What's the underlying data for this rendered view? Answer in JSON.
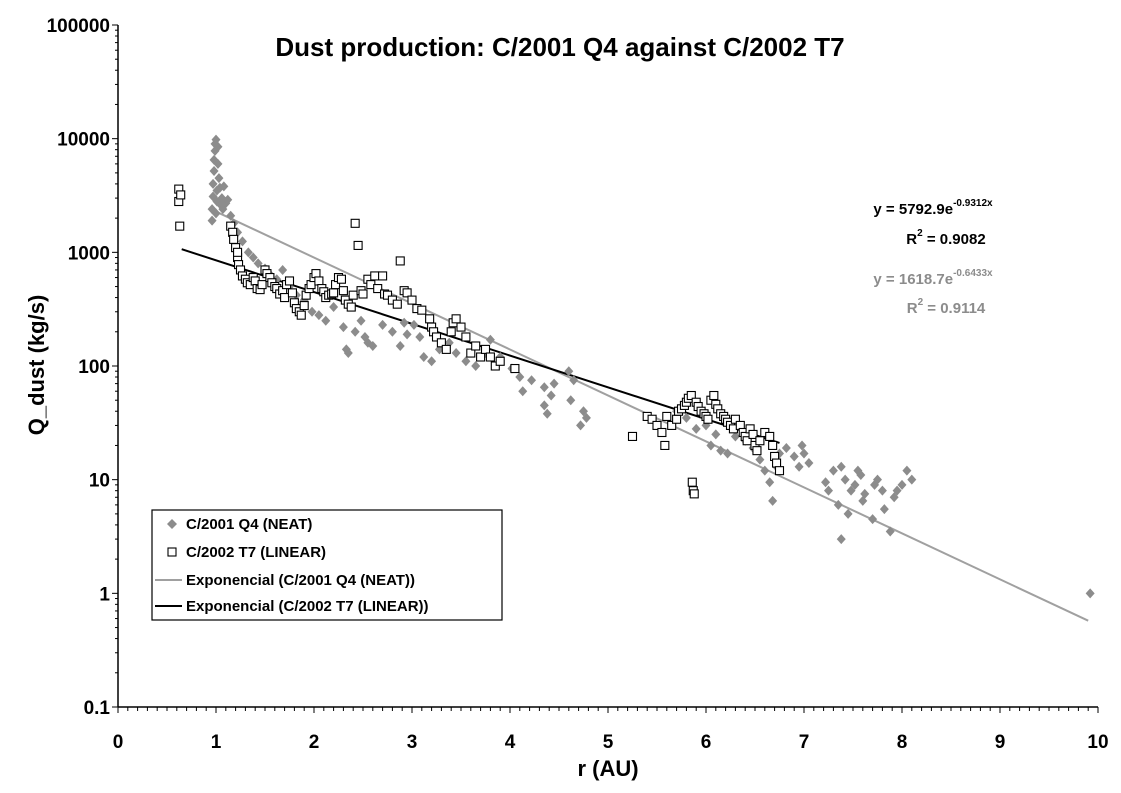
{
  "chart_data": {
    "type": "scatter",
    "title": "Dust production: C/2001 Q4 against C/2002 T7",
    "xlabel": "r (AU)",
    "ylabel": "Q_dust (kg/s)",
    "xlim": [
      0,
      10
    ],
    "ylim": [
      0.1,
      100000
    ],
    "y_scale": "log",
    "grid": false,
    "legend_position": "bottom-left",
    "x_ticks": [
      "0",
      "1",
      "2",
      "3",
      "4",
      "5",
      "6",
      "7",
      "8",
      "9",
      "10"
    ],
    "y_ticks": [
      "0.1",
      "1",
      "10",
      "100",
      "1000",
      "10000",
      "100000"
    ],
    "colors": {
      "neat": "#8c8c8c",
      "linear": "#000000",
      "neat_fit": "#a0a0a0",
      "linear_fit": "#000000"
    },
    "series": [
      {
        "name": "C/2001 Q4 (NEAT)",
        "marker": "diamond",
        "points": [
          [
            0.96,
            1900
          ],
          [
            0.96,
            2400
          ],
          [
            0.97,
            3100
          ],
          [
            0.97,
            4000
          ],
          [
            0.98,
            5200
          ],
          [
            0.98,
            6500
          ],
          [
            0.99,
            7800
          ],
          [
            0.99,
            9000
          ],
          [
            1.0,
            9800
          ],
          [
            1.0,
            2200
          ],
          [
            1.01,
            3500
          ],
          [
            1.01,
            2800
          ],
          [
            1.02,
            8500
          ],
          [
            1.02,
            6000
          ],
          [
            1.03,
            4500
          ],
          [
            1.04,
            3700
          ],
          [
            1.05,
            2600
          ],
          [
            1.06,
            3000
          ],
          [
            1.07,
            2400
          ],
          [
            1.08,
            3800
          ],
          [
            1.1,
            2700
          ],
          [
            1.12,
            2900
          ],
          [
            1.15,
            2100
          ],
          [
            1.18,
            1800
          ],
          [
            1.22,
            1500
          ],
          [
            1.27,
            1250
          ],
          [
            1.33,
            1000
          ],
          [
            1.38,
            900
          ],
          [
            1.43,
            800
          ],
          [
            1.5,
            720
          ],
          [
            1.55,
            640
          ],
          [
            1.62,
            580
          ],
          [
            1.68,
            700
          ],
          [
            1.75,
            500
          ],
          [
            1.82,
            420
          ],
          [
            1.9,
            380
          ],
          [
            1.98,
            300
          ],
          [
            2.05,
            280
          ],
          [
            2.12,
            250
          ],
          [
            2.2,
            330
          ],
          [
            2.3,
            220
          ],
          [
            2.33,
            140
          ],
          [
            2.35,
            130
          ],
          [
            2.42,
            200
          ],
          [
            2.48,
            250
          ],
          [
            2.52,
            180
          ],
          [
            2.55,
            160
          ],
          [
            2.6,
            150
          ],
          [
            2.7,
            230
          ],
          [
            2.8,
            200
          ],
          [
            2.88,
            150
          ],
          [
            2.92,
            240
          ],
          [
            2.95,
            190
          ],
          [
            3.02,
            230
          ],
          [
            3.08,
            180
          ],
          [
            3.12,
            120
          ],
          [
            3.2,
            110
          ],
          [
            3.28,
            140
          ],
          [
            3.38,
            160
          ],
          [
            3.45,
            130
          ],
          [
            3.55,
            110
          ],
          [
            3.65,
            100
          ],
          [
            3.75,
            130
          ],
          [
            3.8,
            170
          ],
          [
            3.9,
            120
          ],
          [
            4.02,
            95
          ],
          [
            4.1,
            80
          ],
          [
            4.13,
            60
          ],
          [
            4.22,
            75
          ],
          [
            4.35,
            65
          ],
          [
            4.35,
            45
          ],
          [
            4.38,
            38
          ],
          [
            4.42,
            55
          ],
          [
            4.45,
            70
          ],
          [
            4.6,
            90
          ],
          [
            4.62,
            50
          ],
          [
            4.65,
            75
          ],
          [
            4.72,
            30
          ],
          [
            4.75,
            40
          ],
          [
            4.78,
            35
          ],
          [
            5.7,
            40
          ],
          [
            5.8,
            35
          ],
          [
            5.9,
            28
          ],
          [
            6.0,
            30
          ],
          [
            6.05,
            20
          ],
          [
            6.1,
            25
          ],
          [
            6.15,
            18
          ],
          [
            6.22,
            17
          ],
          [
            6.3,
            24
          ],
          [
            6.4,
            22
          ],
          [
            6.48,
            19
          ],
          [
            6.55,
            15
          ],
          [
            6.6,
            12
          ],
          [
            6.65,
            9.5
          ],
          [
            6.68,
            6.5
          ],
          [
            6.72,
            13
          ],
          [
            6.75,
            17
          ],
          [
            6.82,
            19
          ],
          [
            6.9,
            16
          ],
          [
            6.95,
            13
          ],
          [
            6.98,
            20
          ],
          [
            7.0,
            17
          ],
          [
            7.05,
            14
          ],
          [
            7.22,
            9.5
          ],
          [
            7.25,
            8
          ],
          [
            7.3,
            12
          ],
          [
            7.35,
            6
          ],
          [
            7.38,
            3
          ],
          [
            7.38,
            13
          ],
          [
            7.42,
            10
          ],
          [
            7.45,
            5
          ],
          [
            7.48,
            8
          ],
          [
            7.52,
            9
          ],
          [
            7.55,
            12
          ],
          [
            7.58,
            11
          ],
          [
            7.6,
            6.5
          ],
          [
            7.62,
            7.5
          ],
          [
            7.7,
            4.5
          ],
          [
            7.72,
            9
          ],
          [
            7.75,
            10
          ],
          [
            7.8,
            8
          ],
          [
            7.82,
            5.5
          ],
          [
            7.88,
            3.5
          ],
          [
            7.92,
            7
          ],
          [
            7.95,
            8
          ],
          [
            8.0,
            9
          ],
          [
            8.05,
            12
          ],
          [
            8.1,
            10
          ],
          [
            9.92,
            1.0
          ]
        ]
      },
      {
        "name": "C/2002 T7 (LINEAR)",
        "marker": "square-open",
        "points": [
          [
            0.62,
            3600
          ],
          [
            0.62,
            2800
          ],
          [
            0.63,
            1700
          ],
          [
            0.64,
            3200
          ],
          [
            1.15,
            1700
          ],
          [
            1.17,
            1500
          ],
          [
            1.18,
            1300
          ],
          [
            1.2,
            1100
          ],
          [
            1.22,
            900
          ],
          [
            1.22,
            1000
          ],
          [
            1.23,
            780
          ],
          [
            1.25,
            700
          ],
          [
            1.27,
            620
          ],
          [
            1.3,
            580
          ],
          [
            1.32,
            540
          ],
          [
            1.35,
            520
          ],
          [
            1.38,
            600
          ],
          [
            1.4,
            560
          ],
          [
            1.42,
            480
          ],
          [
            1.45,
            470
          ],
          [
            1.47,
            520
          ],
          [
            1.5,
            700
          ],
          [
            1.52,
            650
          ],
          [
            1.55,
            600
          ],
          [
            1.57,
            540
          ],
          [
            1.6,
            500
          ],
          [
            1.62,
            480
          ],
          [
            1.65,
            430
          ],
          [
            1.68,
            460
          ],
          [
            1.7,
            400
          ],
          [
            1.72,
            520
          ],
          [
            1.75,
            560
          ],
          [
            1.78,
            440
          ],
          [
            1.8,
            360
          ],
          [
            1.82,
            320
          ],
          [
            1.85,
            300
          ],
          [
            1.87,
            280
          ],
          [
            1.9,
            340
          ],
          [
            1.92,
            420
          ],
          [
            1.95,
            480
          ],
          [
            1.97,
            520
          ],
          [
            2.0,
            600
          ],
          [
            2.02,
            650
          ],
          [
            2.05,
            560
          ],
          [
            2.08,
            480
          ],
          [
            2.1,
            450
          ],
          [
            2.12,
            400
          ],
          [
            2.15,
            420
          ],
          [
            2.18,
            430
          ],
          [
            2.2,
            440
          ],
          [
            2.22,
            520
          ],
          [
            2.25,
            600
          ],
          [
            2.28,
            580
          ],
          [
            2.3,
            460
          ],
          [
            2.32,
            380
          ],
          [
            2.35,
            350
          ],
          [
            2.38,
            330
          ],
          [
            2.4,
            420
          ],
          [
            2.42,
            1800
          ],
          [
            2.45,
            1150
          ],
          [
            2.48,
            460
          ],
          [
            2.5,
            430
          ],
          [
            2.55,
            580
          ],
          [
            2.58,
            520
          ],
          [
            2.62,
            620
          ],
          [
            2.65,
            480
          ],
          [
            2.7,
            620
          ],
          [
            2.72,
            430
          ],
          [
            2.75,
            420
          ],
          [
            2.8,
            380
          ],
          [
            2.85,
            350
          ],
          [
            2.88,
            840
          ],
          [
            2.92,
            460
          ],
          [
            2.95,
            440
          ],
          [
            3.0,
            380
          ],
          [
            3.05,
            320
          ],
          [
            3.1,
            310
          ],
          [
            3.18,
            260
          ],
          [
            3.2,
            220
          ],
          [
            3.22,
            200
          ],
          [
            3.25,
            180
          ],
          [
            3.3,
            160
          ],
          [
            3.35,
            140
          ],
          [
            3.4,
            200
          ],
          [
            3.42,
            240
          ],
          [
            3.45,
            260
          ],
          [
            3.5,
            220
          ],
          [
            3.55,
            180
          ],
          [
            3.6,
            130
          ],
          [
            3.65,
            150
          ],
          [
            3.7,
            120
          ],
          [
            3.75,
            140
          ],
          [
            3.8,
            120
          ],
          [
            3.85,
            100
          ],
          [
            3.9,
            110
          ],
          [
            4.05,
            95
          ],
          [
            5.25,
            24
          ],
          [
            5.4,
            36
          ],
          [
            5.45,
            34
          ],
          [
            5.5,
            30
          ],
          [
            5.55,
            26
          ],
          [
            5.58,
            20
          ],
          [
            5.6,
            36
          ],
          [
            5.65,
            30
          ],
          [
            5.7,
            34
          ],
          [
            5.72,
            40
          ],
          [
            5.75,
            42
          ],
          [
            5.78,
            45
          ],
          [
            5.8,
            48
          ],
          [
            5.82,
            52
          ],
          [
            5.85,
            55
          ],
          [
            5.86,
            9.5
          ],
          [
            5.87,
            8
          ],
          [
            5.88,
            7.5
          ],
          [
            5.9,
            48
          ],
          [
            5.92,
            44
          ],
          [
            5.95,
            40
          ],
          [
            5.98,
            38
          ],
          [
            6.0,
            36
          ],
          [
            6.02,
            34
          ],
          [
            6.05,
            50
          ],
          [
            6.08,
            55
          ],
          [
            6.1,
            46
          ],
          [
            6.12,
            42
          ],
          [
            6.15,
            38
          ],
          [
            6.18,
            36
          ],
          [
            6.2,
            34
          ],
          [
            6.22,
            32
          ],
          [
            6.25,
            30
          ],
          [
            6.28,
            28
          ],
          [
            6.3,
            34
          ],
          [
            6.35,
            30
          ],
          [
            6.38,
            26
          ],
          [
            6.4,
            24
          ],
          [
            6.42,
            22
          ],
          [
            6.45,
            28
          ],
          [
            6.48,
            25
          ],
          [
            6.5,
            20
          ],
          [
            6.52,
            18
          ],
          [
            6.55,
            22
          ],
          [
            6.6,
            26
          ],
          [
            6.65,
            24
          ],
          [
            6.68,
            20
          ],
          [
            6.7,
            16
          ],
          [
            6.72,
            14
          ],
          [
            6.75,
            12
          ]
        ]
      },
      {
        "name": "Exponencial (C/2001 Q4 (NEAT))",
        "type": "line",
        "x": [
          0.95,
          9.9
        ]
      },
      {
        "name": "Exponencial (C/2002 T7 (LINEAR))",
        "type": "line",
        "x": [
          0.65,
          6.75
        ]
      }
    ],
    "annotations": {
      "linear_eq": {
        "prefix": "y = 5792.9e",
        "exp": "-0.9312x",
        "r2_prefix": "R",
        "r2_sup": "2",
        "r2_value": " = 0.9082"
      },
      "neat_eq": {
        "prefix": "y = 1618.7e",
        "exp": "-0.6433x",
        "r2_prefix": "R",
        "r2_sup": "2",
        "r2_value": " = 0.9114"
      }
    }
  }
}
